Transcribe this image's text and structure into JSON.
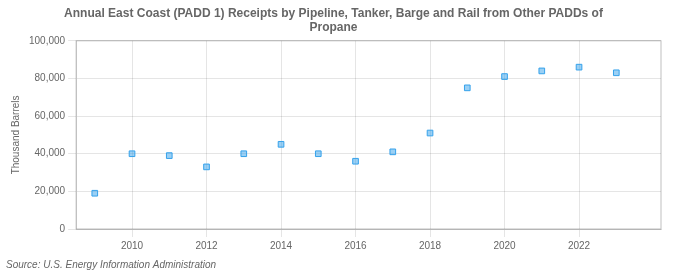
{
  "chart_data": {
    "type": "scatter",
    "title": "Annual East Coast (PADD 1) Receipts by Pipeline, Tanker, Barge and Rail from Other PADDs of\nPropane",
    "ylabel": "Thousand Barrels",
    "annotations": [
      "Source: U.S. Energy Information Administration"
    ],
    "x": [
      2009,
      2010,
      2011,
      2012,
      2013,
      2014,
      2015,
      2016,
      2017,
      2018,
      2019,
      2020,
      2021,
      2022,
      2023
    ],
    "values": [
      19000,
      40000,
      39000,
      33000,
      40000,
      45000,
      40000,
      36000,
      41000,
      51000,
      75000,
      81000,
      84000,
      86000,
      83000
    ],
    "marker": "square",
    "xlim": [
      2008.5,
      2024.2
    ],
    "xticks": [
      2010,
      2012,
      2014,
      2016,
      2018,
      2020,
      2022
    ],
    "ylim": [
      0,
      100000
    ],
    "yticks": [
      0,
      {
        "value": 20000,
        "label": "20,000"
      },
      {
        "value": 40000,
        "label": "40,000"
      },
      {
        "value": 60000,
        "label": "60,000"
      },
      {
        "value": 80000,
        "label": "80,000"
      },
      {
        "value": 100000,
        "label": "100,000"
      }
    ],
    "grid": true
  }
}
